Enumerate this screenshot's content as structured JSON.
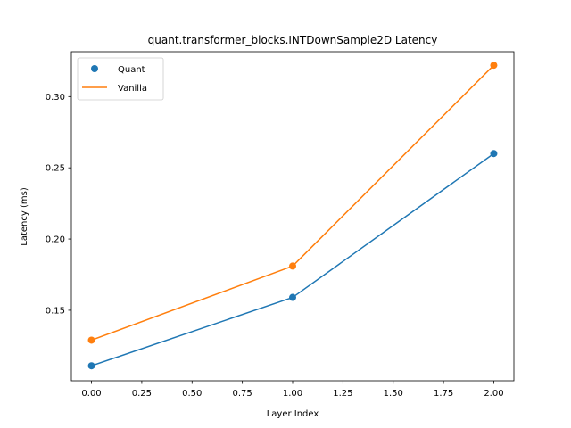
{
  "chart_data": {
    "type": "line",
    "title": "quant.transformer_blocks.INTDownSample2D Latency",
    "xlabel": "Layer Index",
    "ylabel": "Latency (ms)",
    "x": [
      0,
      1,
      2
    ],
    "xlim": [
      -0.1,
      2.1
    ],
    "ylim": [
      0.1005,
      0.3315
    ],
    "xticks": [
      "0.00",
      "0.25",
      "0.50",
      "0.75",
      "1.00",
      "1.25",
      "1.50",
      "1.75",
      "2.00"
    ],
    "yticks": [
      "0.15",
      "0.20",
      "0.25",
      "0.30"
    ],
    "grid": false,
    "legend_position": "upper-left",
    "series": [
      {
        "name": "Quant",
        "values": [
          0.111,
          0.159,
          0.26
        ],
        "color": "#1f77b4",
        "marker": "circle"
      },
      {
        "name": "Vanilla",
        "values": [
          0.129,
          0.181,
          0.322
        ],
        "color": "#ff7f0e",
        "marker": "circle"
      }
    ]
  }
}
